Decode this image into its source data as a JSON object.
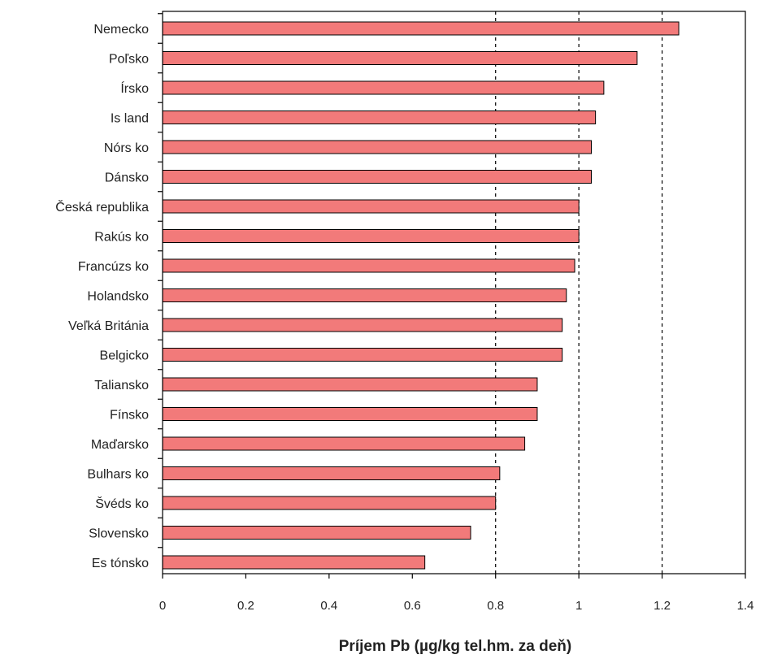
{
  "chart_data": {
    "type": "bar",
    "orientation": "horizontal",
    "categories": [
      "Nemecko",
      "Poľsko",
      "Írsko",
      "Is land",
      "Nórs ko",
      "Dánsko",
      "Česká republika",
      "Rakús ko",
      "Francúzs ko",
      "Holandsko",
      "Veľká Británia",
      "Belgicko",
      "Taliansko",
      "Fínsko",
      "Maďarsko",
      "Bulhars ko",
      "Švéds ko",
      "Slovensko",
      "Es tónsko"
    ],
    "values": [
      1.24,
      1.14,
      1.06,
      1.04,
      1.03,
      1.03,
      1.0,
      1.0,
      0.99,
      0.97,
      0.96,
      0.96,
      0.9,
      0.9,
      0.87,
      0.81,
      0.8,
      0.74,
      0.63
    ],
    "xlim": [
      0,
      1.4
    ],
    "xticks": [
      "0",
      "0.2",
      "0.4",
      "0.6",
      "0.8",
      "1",
      "1.2",
      "1.4"
    ],
    "xtick_values": [
      0,
      0.2,
      0.4,
      0.6,
      0.8,
      1.0,
      1.2,
      1.4
    ],
    "gridlines_at": [
      0.8,
      1.0,
      1.2
    ],
    "grid": "dashed vertical",
    "xlabel": "Príjem Pb (µg/kg tel.hm. za deň)",
    "ylabel": "",
    "title": "",
    "legend": "none",
    "bar_color": "#f27a7a",
    "bar_edge_color": "#000000"
  }
}
